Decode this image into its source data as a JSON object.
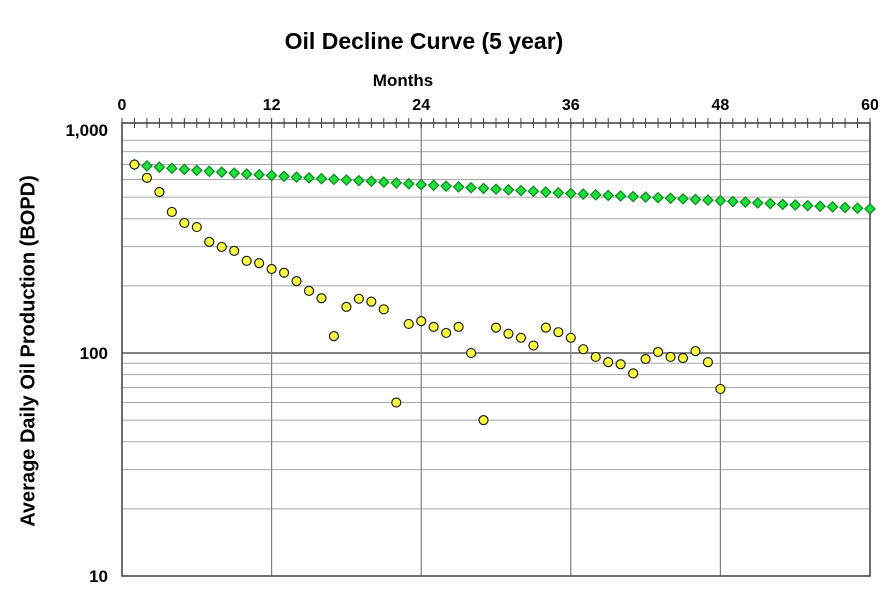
{
  "title": "Oil Decline Curve  (5 year)",
  "axes": {
    "x_title": "Months",
    "y_title": "Average Daily Oil Production (BOPD)",
    "x_tick_labels": [
      "0",
      "12",
      "24",
      "36",
      "48",
      "60"
    ],
    "y_tick_labels": [
      "1,000",
      "100",
      "10"
    ]
  },
  "colors": {
    "background": "#FFFFFF",
    "frame": "#3F3F3F",
    "grid_minor": "#A8A8A8",
    "grid_major": "#5A5A5A",
    "grid_vertical": "#7F7F7F",
    "text": "#000000",
    "green_fill": "#21DF3E",
    "green_stroke": "#0C8F1F",
    "yellow_fill": "#FFFF42",
    "yellow_stroke": "#202020"
  },
  "chart_data": {
    "type": "scatter",
    "title": "Oil Decline Curve  (5 year)",
    "xlabel": "Months",
    "ylabel": "Average Daily Oil Production (BOPD)",
    "x_axis": {
      "min": 0,
      "max": 60,
      "major_ticks": [
        0,
        12,
        24,
        36,
        48,
        60
      ],
      "minor_tick_interval": 1,
      "labels_position": "top"
    },
    "y_axis": {
      "scale": "log",
      "min": 10,
      "max": 1000,
      "major_ticks": [
        10,
        100,
        1000
      ],
      "tick_labels": [
        "10",
        "100",
        "1,000"
      ],
      "minor_gridlines": true
    },
    "grid": {
      "horizontal_minor": true,
      "horizontal_major": true,
      "vertical_major": true
    },
    "legend": "none",
    "series": [
      {
        "name": "green-diamond-series",
        "marker": "diamond",
        "marker_fill": "#21DF3E",
        "marker_stroke": "#0C8F1F",
        "x": [
          1,
          2,
          3,
          4,
          5,
          6,
          7,
          8,
          9,
          10,
          11,
          12,
          13,
          14,
          15,
          16,
          17,
          18,
          19,
          20,
          21,
          22,
          23,
          24,
          25,
          26,
          27,
          28,
          29,
          30,
          31,
          32,
          33,
          34,
          35,
          36,
          37,
          38,
          39,
          40,
          41,
          42,
          43,
          44,
          45,
          46,
          47,
          48,
          49,
          50,
          51,
          52,
          53,
          54,
          55,
          56,
          57,
          58,
          59,
          60
        ],
        "y": [
          700,
          690,
          681,
          673,
          666,
          659,
          653,
          647,
          641,
          635,
          630,
          625,
          620,
          615,
          610,
          605,
          601,
          597,
          593,
          589,
          584,
          579,
          574,
          569,
          565,
          560,
          556,
          551,
          547,
          543,
          539,
          535,
          531,
          527,
          523,
          519,
          516,
          512,
          509,
          506,
          503,
          500,
          497,
          494,
          491,
          488,
          485,
          482,
          478,
          475,
          471,
          468,
          464,
          461,
          458,
          455,
          452,
          449,
          446,
          443
        ]
      },
      {
        "name": "yellow-circle-series",
        "marker": "circle",
        "marker_fill": "#FFFF42",
        "marker_stroke": "#202020",
        "x": [
          1,
          2,
          3,
          4,
          5,
          6,
          7,
          8,
          9,
          10,
          11,
          12,
          13,
          14,
          15,
          16,
          17,
          18,
          19,
          20,
          21,
          22,
          23,
          24,
          25,
          26,
          27,
          28,
          29,
          30,
          31,
          32,
          33,
          34,
          35,
          36,
          37,
          38,
          39,
          40,
          41,
          42,
          43,
          44,
          45,
          46,
          47,
          48
        ],
        "y": [
          700,
          610,
          527,
          429,
          383,
          367,
          315,
          299,
          287,
          259,
          253,
          238,
          229,
          210,
          190,
          176,
          119,
          161,
          175,
          170,
          157,
          60,
          135,
          139,
          131,
          123,
          131,
          100,
          50,
          130,
          122,
          117,
          108,
          130,
          124,
          117,
          104,
          96,
          91,
          89,
          81,
          94,
          101,
          96,
          95,
          102,
          91,
          69
        ]
      }
    ]
  }
}
